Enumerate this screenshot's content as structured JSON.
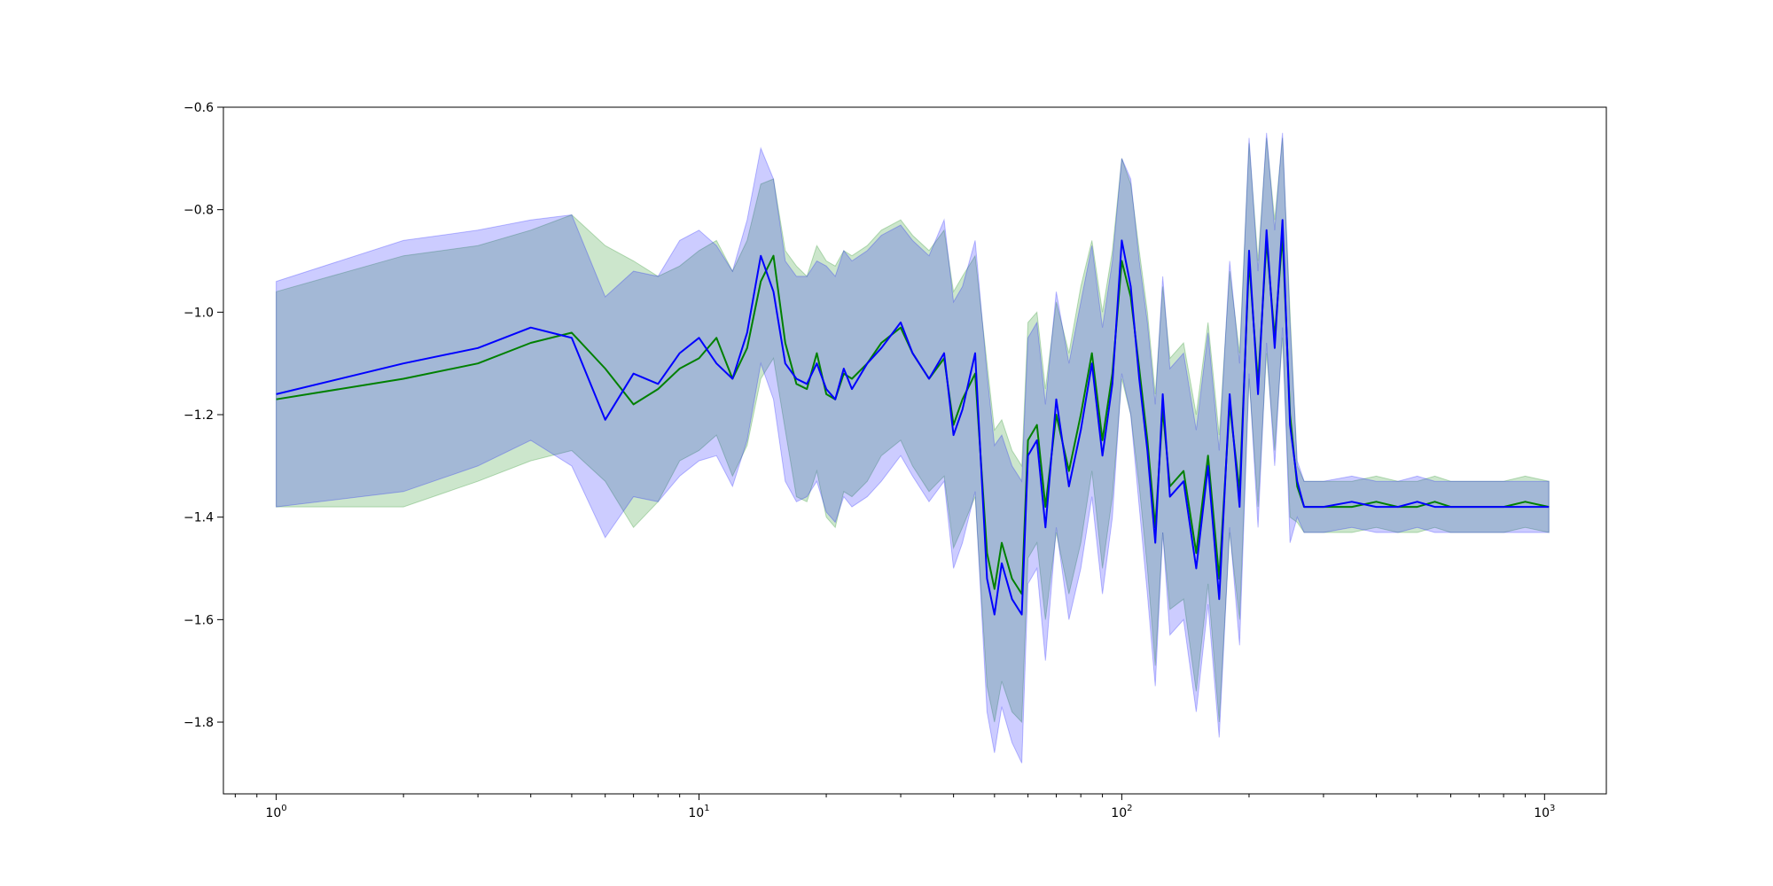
{
  "chart_data": {
    "type": "line",
    "title": "",
    "xlabel": "",
    "ylabel": "",
    "xscale": "log",
    "xlim": [
      0.75,
      1400
    ],
    "ylim": [
      -1.94,
      -0.6
    ],
    "x_ticks": [
      {
        "value": 1,
        "base": "10",
        "exp": "0"
      },
      {
        "value": 10,
        "base": "10",
        "exp": "1"
      },
      {
        "value": 100,
        "base": "10",
        "exp": "2"
      },
      {
        "value": 1000,
        "base": "10",
        "exp": "3"
      }
    ],
    "y_ticks": [
      {
        "value": -0.6,
        "label": "−0.6"
      },
      {
        "value": -0.8,
        "label": "−0.8"
      },
      {
        "value": -1.0,
        "label": "−1.0"
      },
      {
        "value": -1.2,
        "label": "−1.2"
      },
      {
        "value": -1.4,
        "label": "−1.4"
      },
      {
        "value": -1.6,
        "label": "−1.6"
      },
      {
        "value": -1.8,
        "label": "−1.8"
      }
    ],
    "grid": false,
    "legend": "none",
    "series": [
      {
        "color": "#008000",
        "band_color": "#008000",
        "band_opacity": 0.2,
        "x": [
          1,
          2,
          3,
          4,
          5,
          6,
          7,
          8,
          9,
          10,
          11,
          12,
          13,
          14,
          15,
          16,
          17,
          18,
          19,
          20,
          21,
          22,
          23,
          25,
          27,
          30,
          32,
          35,
          38,
          40,
          42,
          45,
          48,
          50,
          52,
          55,
          58,
          60,
          63,
          66,
          70,
          75,
          80,
          85,
          90,
          95,
          100,
          105,
          110,
          115,
          120,
          125,
          130,
          140,
          150,
          160,
          170,
          180,
          190,
          200,
          210,
          220,
          230,
          240,
          250,
          260,
          270,
          300,
          350,
          400,
          450,
          500,
          550,
          600,
          700,
          800,
          900,
          1024
        ],
        "y": [
          -1.17,
          -1.13,
          -1.1,
          -1.06,
          -1.04,
          -1.11,
          -1.18,
          -1.15,
          -1.11,
          -1.09,
          -1.05,
          -1.13,
          -1.07,
          -0.94,
          -0.89,
          -1.06,
          -1.14,
          -1.15,
          -1.08,
          -1.16,
          -1.17,
          -1.12,
          -1.13,
          -1.1,
          -1.06,
          -1.03,
          -1.08,
          -1.13,
          -1.09,
          -1.22,
          -1.17,
          -1.12,
          -1.47,
          -1.54,
          -1.45,
          -1.52,
          -1.55,
          -1.25,
          -1.22,
          -1.38,
          -1.2,
          -1.31,
          -1.2,
          -1.08,
          -1.25,
          -1.12,
          -0.9,
          -0.97,
          -1.11,
          -1.25,
          -1.42,
          -1.19,
          -1.34,
          -1.31,
          -1.47,
          -1.28,
          -1.52,
          -1.18,
          -1.35,
          -0.9,
          -1.14,
          -0.86,
          -1.05,
          -0.85,
          -1.2,
          -1.34,
          -1.38,
          -1.38,
          -1.38,
          -1.37,
          -1.38,
          -1.38,
          -1.37,
          -1.38,
          -1.38,
          -1.38,
          -1.37,
          -1.38
        ],
        "upper": [
          -0.96,
          -0.89,
          -0.87,
          -0.84,
          -0.81,
          -0.87,
          -0.9,
          -0.93,
          -0.91,
          -0.88,
          -0.86,
          -0.92,
          -0.86,
          -0.75,
          -0.74,
          -0.88,
          -0.91,
          -0.93,
          -0.87,
          -0.9,
          -0.91,
          -0.88,
          -0.89,
          -0.87,
          -0.84,
          -0.82,
          -0.85,
          -0.88,
          -0.84,
          -0.96,
          -0.93,
          -0.89,
          -1.1,
          -1.23,
          -1.21,
          -1.27,
          -1.3,
          -1.02,
          -1.0,
          -1.15,
          -0.98,
          -1.08,
          -0.95,
          -0.86,
          -1.0,
          -0.88,
          -0.7,
          -0.75,
          -0.88,
          -1.0,
          -1.16,
          -0.95,
          -1.09,
          -1.06,
          -1.2,
          -1.02,
          -1.24,
          -0.92,
          -1.08,
          -0.67,
          -0.9,
          -0.66,
          -0.82,
          -0.66,
          -1.0,
          -1.3,
          -1.33,
          -1.33,
          -1.33,
          -1.32,
          -1.33,
          -1.33,
          -1.32,
          -1.33,
          -1.33,
          -1.33,
          -1.32,
          -1.33
        ],
        "lower": [
          -1.38,
          -1.38,
          -1.33,
          -1.29,
          -1.27,
          -1.33,
          -1.42,
          -1.37,
          -1.29,
          -1.27,
          -1.24,
          -1.32,
          -1.26,
          -1.13,
          -1.09,
          -1.23,
          -1.36,
          -1.37,
          -1.31,
          -1.4,
          -1.42,
          -1.35,
          -1.36,
          -1.33,
          -1.28,
          -1.25,
          -1.3,
          -1.35,
          -1.32,
          -1.46,
          -1.42,
          -1.36,
          -1.73,
          -1.8,
          -1.72,
          -1.78,
          -1.8,
          -1.48,
          -1.45,
          -1.6,
          -1.43,
          -1.55,
          -1.45,
          -1.31,
          -1.5,
          -1.36,
          -1.13,
          -1.2,
          -1.34,
          -1.5,
          -1.69,
          -1.43,
          -1.58,
          -1.56,
          -1.74,
          -1.53,
          -1.8,
          -1.43,
          -1.6,
          -1.13,
          -1.38,
          -1.08,
          -1.27,
          -1.05,
          -1.4,
          -1.41,
          -1.43,
          -1.43,
          -1.43,
          -1.42,
          -1.43,
          -1.43,
          -1.42,
          -1.43,
          -1.43,
          -1.43,
          -1.42,
          -1.43
        ]
      },
      {
        "color": "#0000ff",
        "band_color": "#0000ff",
        "band_opacity": 0.2,
        "x": [
          1,
          2,
          3,
          4,
          5,
          6,
          7,
          8,
          9,
          10,
          11,
          12,
          13,
          14,
          15,
          16,
          17,
          18,
          19,
          20,
          21,
          22,
          23,
          25,
          27,
          30,
          32,
          35,
          38,
          40,
          42,
          45,
          48,
          50,
          52,
          55,
          58,
          60,
          63,
          66,
          70,
          75,
          80,
          85,
          90,
          95,
          100,
          105,
          110,
          115,
          120,
          125,
          130,
          140,
          150,
          160,
          170,
          180,
          190,
          200,
          210,
          220,
          230,
          240,
          250,
          260,
          270,
          300,
          350,
          400,
          450,
          500,
          550,
          600,
          700,
          800,
          900,
          1024
        ],
        "y": [
          -1.16,
          -1.1,
          -1.07,
          -1.03,
          -1.05,
          -1.21,
          -1.12,
          -1.14,
          -1.08,
          -1.05,
          -1.1,
          -1.13,
          -1.04,
          -0.89,
          -0.96,
          -1.1,
          -1.13,
          -1.14,
          -1.1,
          -1.15,
          -1.17,
          -1.11,
          -1.15,
          -1.1,
          -1.07,
          -1.02,
          -1.08,
          -1.13,
          -1.08,
          -1.24,
          -1.19,
          -1.08,
          -1.52,
          -1.59,
          -1.49,
          -1.56,
          -1.59,
          -1.28,
          -1.25,
          -1.42,
          -1.17,
          -1.34,
          -1.23,
          -1.1,
          -1.28,
          -1.14,
          -0.86,
          -0.95,
          -1.13,
          -1.27,
          -1.45,
          -1.16,
          -1.36,
          -1.33,
          -1.5,
          -1.3,
          -1.56,
          -1.16,
          -1.38,
          -0.88,
          -1.16,
          -0.84,
          -1.07,
          -0.82,
          -1.22,
          -1.33,
          -1.38,
          -1.38,
          -1.37,
          -1.38,
          -1.38,
          -1.37,
          -1.38,
          -1.38,
          -1.38,
          -1.38,
          -1.38,
          -1.38
        ],
        "upper": [
          -0.94,
          -0.86,
          -0.84,
          -0.82,
          -0.81,
          -0.97,
          -0.92,
          -0.93,
          -0.86,
          -0.84,
          -0.87,
          -0.92,
          -0.82,
          -0.68,
          -0.74,
          -0.9,
          -0.93,
          -0.93,
          -0.9,
          -0.91,
          -0.93,
          -0.88,
          -0.9,
          -0.88,
          -0.85,
          -0.83,
          -0.86,
          -0.89,
          -0.82,
          -0.98,
          -0.95,
          -0.86,
          -1.12,
          -1.26,
          -1.24,
          -1.3,
          -1.33,
          -1.05,
          -1.02,
          -1.18,
          -0.96,
          -1.1,
          -0.98,
          -0.87,
          -1.03,
          -0.9,
          -0.7,
          -0.74,
          -0.9,
          -1.02,
          -1.18,
          -0.93,
          -1.11,
          -1.08,
          -1.23,
          -1.04,
          -1.27,
          -0.9,
          -1.1,
          -0.66,
          -0.92,
          -0.65,
          -0.84,
          -0.65,
          -1.02,
          -1.29,
          -1.33,
          -1.33,
          -1.32,
          -1.33,
          -1.33,
          -1.32,
          -1.33,
          -1.33,
          -1.33,
          -1.33,
          -1.33,
          -1.33
        ],
        "lower": [
          -1.38,
          -1.35,
          -1.3,
          -1.25,
          -1.3,
          -1.44,
          -1.36,
          -1.37,
          -1.32,
          -1.29,
          -1.28,
          -1.34,
          -1.25,
          -1.1,
          -1.17,
          -1.33,
          -1.37,
          -1.36,
          -1.33,
          -1.39,
          -1.41,
          -1.36,
          -1.38,
          -1.36,
          -1.33,
          -1.28,
          -1.32,
          -1.37,
          -1.33,
          -1.5,
          -1.45,
          -1.35,
          -1.78,
          -1.86,
          -1.77,
          -1.84,
          -1.88,
          -1.53,
          -1.5,
          -1.68,
          -1.42,
          -1.6,
          -1.5,
          -1.36,
          -1.55,
          -1.4,
          -1.12,
          -1.2,
          -1.38,
          -1.55,
          -1.73,
          -1.43,
          -1.63,
          -1.6,
          -1.78,
          -1.57,
          -1.83,
          -1.42,
          -1.65,
          -1.12,
          -1.42,
          -1.06,
          -1.3,
          -1.03,
          -1.45,
          -1.4,
          -1.43,
          -1.43,
          -1.42,
          -1.43,
          -1.43,
          -1.42,
          -1.43,
          -1.43,
          -1.43,
          -1.43,
          -1.43,
          -1.43
        ]
      }
    ]
  }
}
